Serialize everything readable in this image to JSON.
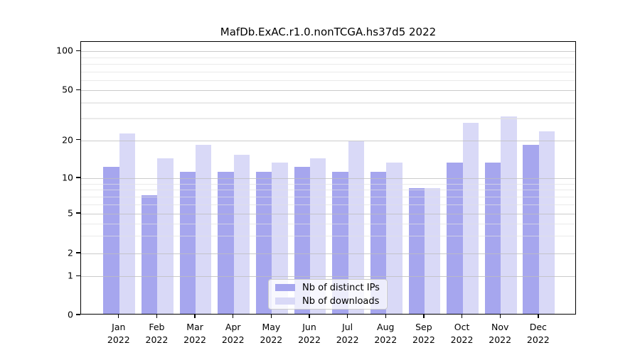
{
  "chart_data": {
    "type": "bar",
    "title": "MafDb.ExAC.r1.0.nonTCGA.hs37d5 2022",
    "categories": [
      "Jan",
      "Feb",
      "Mar",
      "Apr",
      "May",
      "Jun",
      "Jul",
      "Aug",
      "Sep",
      "Oct",
      "Nov",
      "Dec"
    ],
    "year_label": "2022",
    "series": [
      {
        "name": "Nb of distinct IPs",
        "color": "#a6a6ee",
        "values": [
          12,
          7,
          11,
          11,
          11,
          12,
          11,
          11,
          8,
          13,
          13,
          18
        ]
      },
      {
        "name": "Nb of downloads",
        "color": "#d9d9f7",
        "values": [
          22,
          14,
          18,
          15,
          13,
          14,
          19,
          13,
          8,
          27,
          30,
          23
        ]
      }
    ],
    "y_axis": {
      "scale": "symlog",
      "tick_labels": [
        "0",
        "1",
        "2",
        "5",
        "10",
        "20",
        "50",
        "100"
      ],
      "major_ticks": [
        0,
        1,
        2,
        5,
        10,
        20,
        50,
        100
      ],
      "minor_gridlines": [
        3,
        4,
        6,
        7,
        8,
        9,
        30,
        40,
        60,
        70,
        80,
        90
      ],
      "ylim": [
        0,
        120
      ]
    },
    "x_axis": {
      "label_format": "month over year, e.g. Jan / 2022"
    },
    "legend": {
      "entries": [
        "Nb of distinct IPs",
        "Nb of downloads"
      ],
      "position": "lower center"
    },
    "grid": true
  },
  "colors": {
    "background": "#ffffff",
    "bar_distinct_ips": "#a6a6ee",
    "bar_downloads": "#d9d9f7",
    "major_grid": "#cbcbcb",
    "minor_grid": "#e8e8e8",
    "spine": "#000000",
    "text": "#000000",
    "legend_border": "#cbcbcb"
  }
}
